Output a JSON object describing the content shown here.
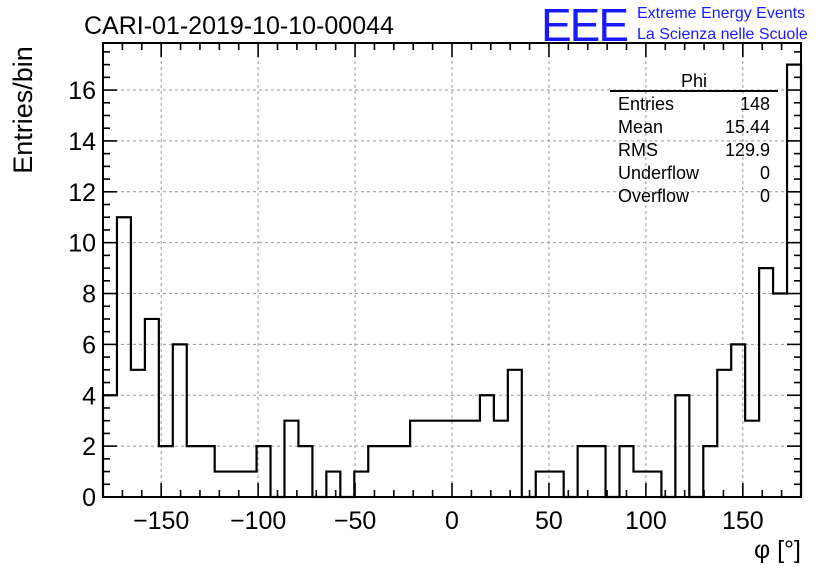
{
  "title": "CARI-01-2019-10-10-00044",
  "branding": {
    "logo_text": "EEE",
    "line1": "Extreme Energy Events",
    "line2": "La Scienza nelle Scuole",
    "color": "#1a1aff"
  },
  "stats_box": {
    "title": "Phi",
    "rows": [
      {
        "label": "Entries",
        "value": "148"
      },
      {
        "label": "Mean",
        "value": "15.44"
      },
      {
        "label": "RMS",
        "value": "129.9"
      },
      {
        "label": "Underflow",
        "value": "0"
      },
      {
        "label": "Overflow",
        "value": "0"
      }
    ]
  },
  "chart_data": {
    "type": "bar",
    "title": "CARI-01-2019-10-10-00044",
    "xlabel": "φ [°]",
    "ylabel": "Entries/bin",
    "xlim": [
      -180,
      180
    ],
    "ylim": [
      0,
      17.85
    ],
    "grid": true,
    "bin_width": 7.2,
    "x_ticks": [
      -150,
      -100,
      -50,
      0,
      50,
      100,
      150
    ],
    "x_tick_labels": [
      "−150",
      "−100",
      "−50",
      "0",
      "50",
      "100",
      "150"
    ],
    "y_ticks": [
      0,
      2,
      4,
      6,
      8,
      10,
      12,
      14,
      16
    ],
    "y_tick_labels": [
      "0",
      "2",
      "4",
      "6",
      "8",
      "10",
      "12",
      "14",
      "16"
    ],
    "values": [
      4,
      11,
      5,
      7,
      2,
      6,
      2,
      2,
      1,
      1,
      1,
      2,
      0,
      3,
      2,
      0,
      1,
      0,
      1,
      2,
      2,
      2,
      3,
      3,
      3,
      3,
      3,
      4,
      3,
      5,
      0,
      1,
      1,
      0,
      2,
      2,
      0,
      2,
      1,
      1,
      0,
      4,
      0,
      2,
      5,
      6,
      3,
      9,
      8,
      17
    ]
  }
}
